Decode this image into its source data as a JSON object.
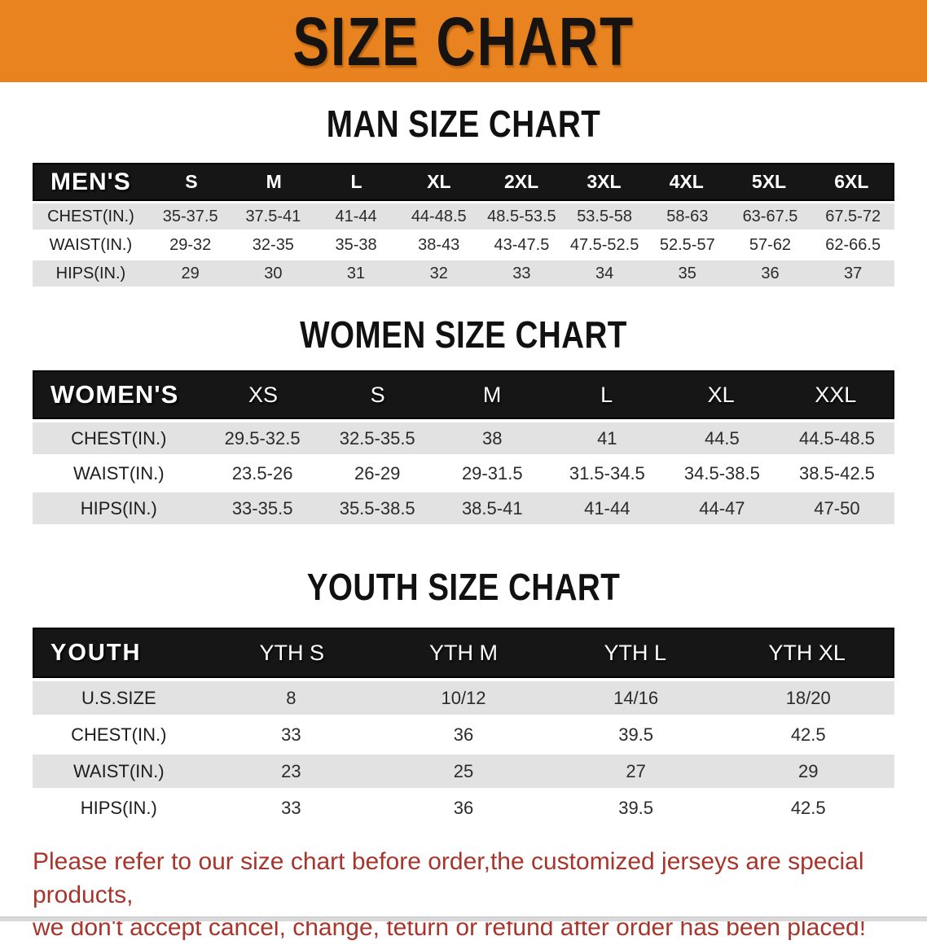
{
  "banner": {
    "title": "SIZE CHART"
  },
  "colors": {
    "banner_bg": "#E8831F",
    "header_bar": "#161616",
    "stripe": "#E2E2E2",
    "disclaimer_text": "#A8352C"
  },
  "tables": [
    {
      "title": "MAN SIZE CHART",
      "header_label": "MEN'S",
      "sizes": [
        "S",
        "M",
        "L",
        "XL",
        "2XL",
        "3XL",
        "4XL",
        "5XL",
        "6XL"
      ],
      "rows": [
        {
          "label": "CHEST(IN.)",
          "values": [
            "35-37.5",
            "37.5-41",
            "41-44",
            "44-48.5",
            "48.5-53.5",
            "53.5-58",
            "58-63",
            "63-67.5",
            "67.5-72"
          ]
        },
        {
          "label": "WAIST(IN.)",
          "values": [
            "29-32",
            "32-35",
            "35-38",
            "38-43",
            "43-47.5",
            "47.5-52.5",
            "52.5-57",
            "57-62",
            "62-66.5"
          ]
        },
        {
          "label": "HIPS(IN.)",
          "values": [
            "29",
            "30",
            "31",
            "32",
            "33",
            "34",
            "35",
            "36",
            "37"
          ]
        }
      ]
    },
    {
      "title": "WOMEN SIZE CHART",
      "header_label": "WOMEN'S",
      "sizes": [
        "XS",
        "S",
        "M",
        "L",
        "XL",
        "XXL"
      ],
      "rows": [
        {
          "label": "CHEST(IN.)",
          "values": [
            "29.5-32.5",
            "32.5-35.5",
            "38",
            "41",
            "44.5",
            "44.5-48.5"
          ]
        },
        {
          "label": "WAIST(IN.)",
          "values": [
            "23.5-26",
            "26-29",
            "29-31.5",
            "31.5-34.5",
            "34.5-38.5",
            "38.5-42.5"
          ]
        },
        {
          "label": "HIPS(IN.)",
          "values": [
            "33-35.5",
            "35.5-38.5",
            "38.5-41",
            "41-44",
            "44-47",
            "47-50"
          ]
        }
      ]
    },
    {
      "title": "YOUTH SIZE CHART",
      "header_label": "YOUTH",
      "sizes": [
        "YTH S",
        "YTH M",
        "YTH L",
        "YTH XL"
      ],
      "rows": [
        {
          "label": "U.S.SIZE",
          "values": [
            "8",
            "10/12",
            "14/16",
            "18/20"
          ]
        },
        {
          "label": "CHEST(IN.)",
          "values": [
            "33",
            "36",
            "39.5",
            "42.5"
          ]
        },
        {
          "label": "WAIST(IN.)",
          "values": [
            "23",
            "25",
            "27",
            "29"
          ]
        },
        {
          "label": "HIPS(IN.)",
          "values": [
            "33",
            "36",
            "39.5",
            "42.5"
          ]
        }
      ]
    }
  ],
  "disclaimer": {
    "line1": "Please refer to our size chart before order,the customized jerseys are special products,",
    "line2": "we don't accept cancel, change, teturn or refund after order has been placed!"
  }
}
